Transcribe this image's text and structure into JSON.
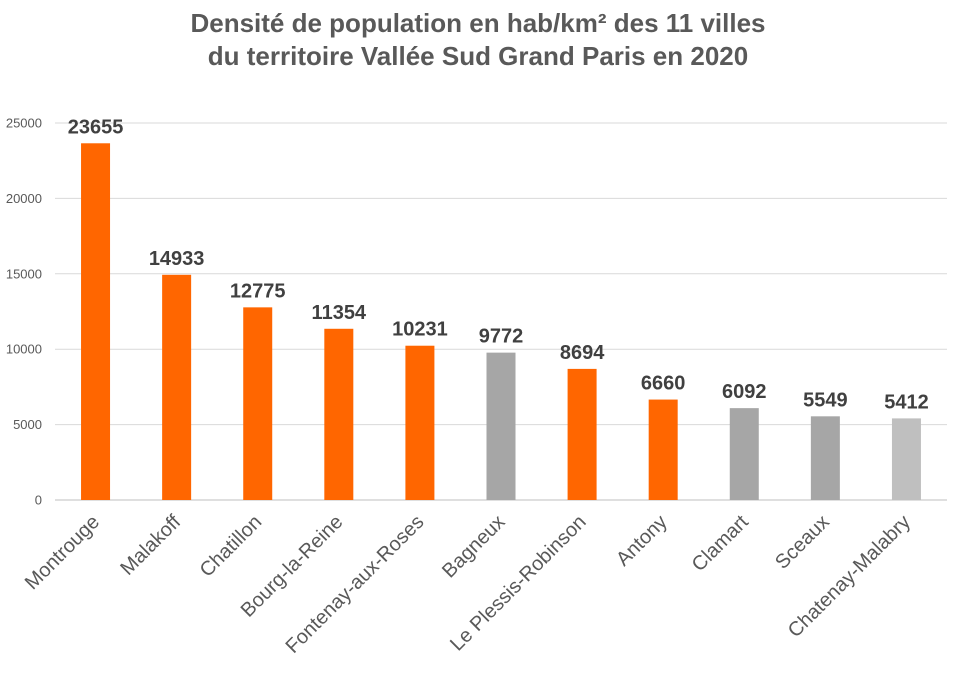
{
  "chart_data": {
    "type": "bar",
    "title_lines": [
      "Densité de population en hab/km² des 11 villes",
      "du territoire Vallée Sud Grand Paris en 2020"
    ],
    "categories": [
      "Montrouge",
      "Malakoff",
      "Chatillon",
      "Bourg-la-Reine",
      "Fontenay-aux-Roses",
      "Bagneux",
      "Le Plessis-Robinson",
      "Antony",
      "Clamart",
      "Sceaux",
      "Chatenay-Malabry"
    ],
    "values": [
      23655,
      14933,
      12775,
      11354,
      10231,
      9772,
      8694,
      6660,
      6092,
      5549,
      5412
    ],
    "value_labels": [
      "23655",
      "14933",
      "12775",
      "11354",
      "10231",
      "9772",
      "8694",
      "6660",
      "6092",
      "5549",
      "5412"
    ],
    "bar_colors": [
      "#ff6600",
      "#ff6600",
      "#ff6600",
      "#ff6600",
      "#ff6600",
      "#a6a6a6",
      "#ff6600",
      "#ff6600",
      "#a6a6a6",
      "#a6a6a6",
      "#bfbfbf"
    ],
    "y_ticks": [
      0,
      5000,
      10000,
      15000,
      20000,
      25000
    ],
    "y_tick_labels": [
      "0",
      "5000",
      "10000",
      "15000",
      "20000",
      "25000"
    ],
    "ylim": [
      0,
      25000
    ],
    "grid": true,
    "legend": "none",
    "xlabel": "",
    "ylabel": ""
  }
}
